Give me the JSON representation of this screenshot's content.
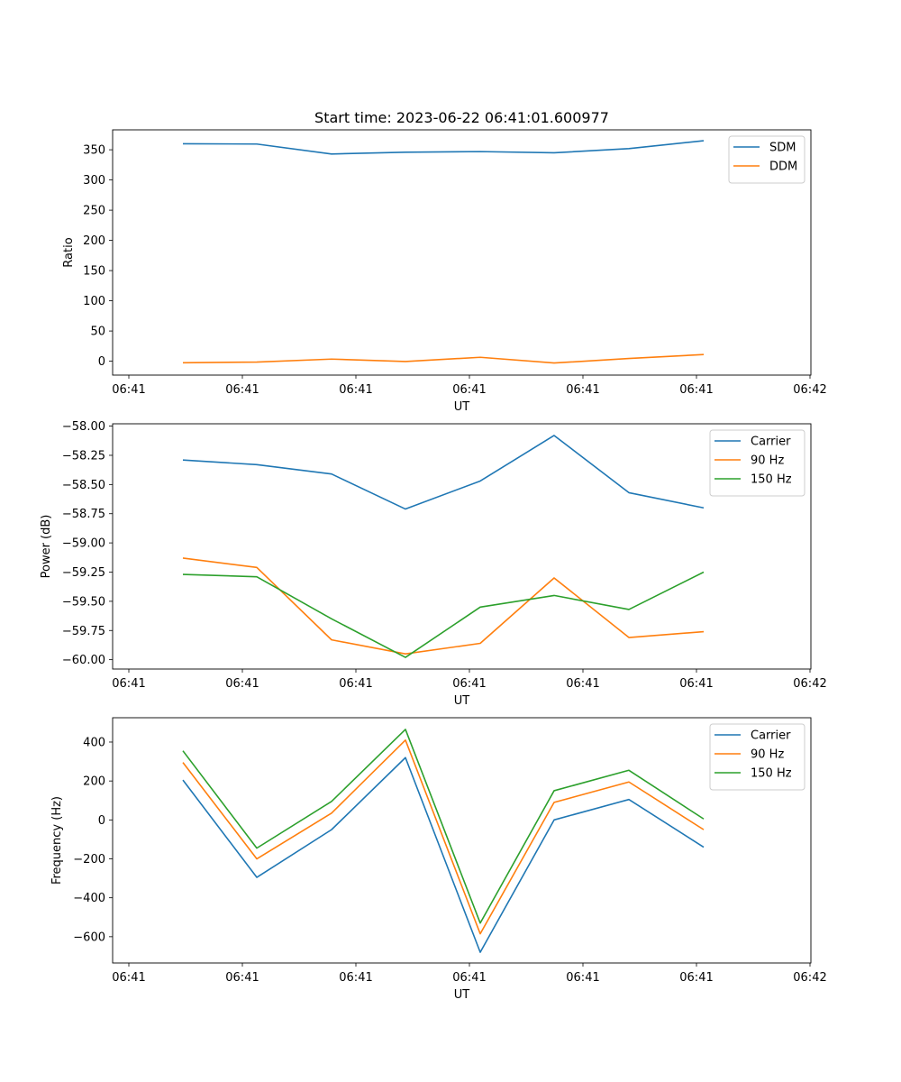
{
  "title": "Start time: 2023-06-22 06:41:01.600977",
  "x_tick_labels": [
    "06:41",
    "06:41",
    "06:41",
    "06:41",
    "06:41",
    "06:41",
    "06:42"
  ],
  "chart_data": [
    {
      "type": "line",
      "title": "Start time: 2023-06-22 06:41:01.600977",
      "xlabel": "UT",
      "ylabel": "Ratio",
      "ylim": [
        -23,
        383
      ],
      "yticks": [
        0,
        50,
        100,
        150,
        200,
        250,
        300,
        350
      ],
      "ytick_labels": [
        "0",
        "50",
        "100",
        "150",
        "200",
        "250",
        "300",
        "350"
      ],
      "legend_position": "upper right",
      "grid": false,
      "series": [
        {
          "name": "SDM",
          "color": "#1f77b4",
          "values": [
            360,
            359.5,
            343,
            346,
            347,
            345,
            352,
            365
          ]
        },
        {
          "name": "DDM",
          "color": "#ff7f0e",
          "values": [
            -2.5,
            -1.5,
            3.5,
            -0.5,
            6.5,
            -3,
            4.5,
            11
          ]
        }
      ]
    },
    {
      "type": "line",
      "xlabel": "UT",
      "ylabel": "Power (dB)",
      "ylim": [
        -60.08,
        -57.98
      ],
      "yticks": [
        -60.0,
        -59.75,
        -59.5,
        -59.25,
        -59.0,
        -58.75,
        -58.5,
        -58.25,
        -58.0
      ],
      "ytick_labels": [
        "−60.00",
        "−59.75",
        "−59.50",
        "−59.25",
        "−59.00",
        "−58.75",
        "−58.50",
        "−58.25",
        "−58.00"
      ],
      "legend_position": "upper right",
      "grid": false,
      "series": [
        {
          "name": "Carrier",
          "color": "#1f77b4",
          "values": [
            -58.29,
            -58.33,
            -58.41,
            -58.71,
            -58.47,
            -58.08,
            -58.57,
            -58.7
          ]
        },
        {
          "name": "90 Hz",
          "color": "#ff7f0e",
          "values": [
            -59.13,
            -59.21,
            -59.83,
            -59.95,
            -59.86,
            -59.3,
            -59.81,
            -59.76
          ]
        },
        {
          "name": "150 Hz",
          "color": "#2ca02c",
          "values": [
            -59.27,
            -59.29,
            -59.65,
            -59.98,
            -59.55,
            -59.45,
            -59.57,
            -59.25
          ]
        }
      ]
    },
    {
      "type": "line",
      "xlabel": "UT",
      "ylabel": "Frequency (Hz)",
      "ylim": [
        -735,
        525
      ],
      "yticks": [
        -600,
        -400,
        -200,
        0,
        200,
        400
      ],
      "ytick_labels": [
        "−600",
        "−400",
        "−200",
        "0",
        "200",
        "400"
      ],
      "legend_position": "upper right",
      "grid": false,
      "series": [
        {
          "name": "Carrier",
          "color": "#1f77b4",
          "values": [
            205,
            -295,
            -50,
            320,
            -680,
            0,
            105,
            -140
          ]
        },
        {
          "name": "90 Hz",
          "color": "#ff7f0e",
          "values": [
            295,
            -200,
            35,
            410,
            -585,
            90,
            195,
            -50
          ]
        },
        {
          "name": "150 Hz",
          "color": "#2ca02c",
          "values": [
            355,
            -145,
            95,
            465,
            -530,
            150,
            255,
            5
          ]
        }
      ]
    }
  ]
}
